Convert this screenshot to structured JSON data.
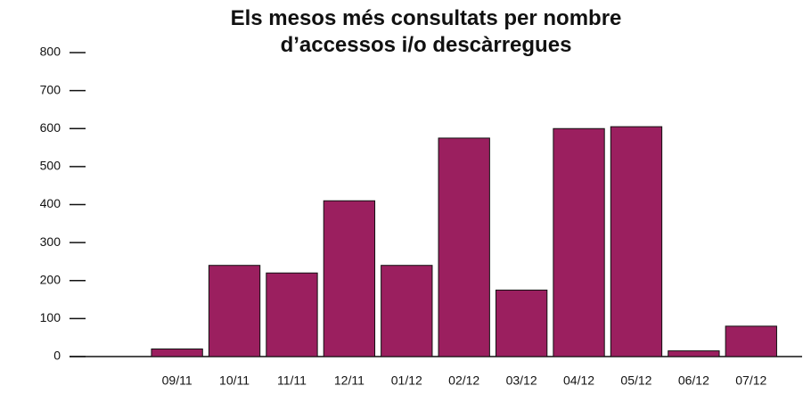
{
  "chart_data": {
    "type": "bar",
    "title": "Els mesos més consultats per nombre d’accessos i/o descàrregues",
    "categories": [
      null,
      "09/11",
      "10/11",
      "11/11",
      "12/11",
      "01/12",
      "02/12",
      "03/12",
      "04/12",
      "05/12",
      "06/12",
      "07/12"
    ],
    "values": [
      null,
      20,
      240,
      220,
      410,
      240,
      575,
      175,
      600,
      605,
      15,
      80
    ],
    "color": "#9b1f5f",
    "ylim": [
      0,
      800
    ],
    "yticks": [
      0,
      100,
      200,
      300,
      400,
      500,
      600,
      700,
      800
    ],
    "grid": false
  }
}
